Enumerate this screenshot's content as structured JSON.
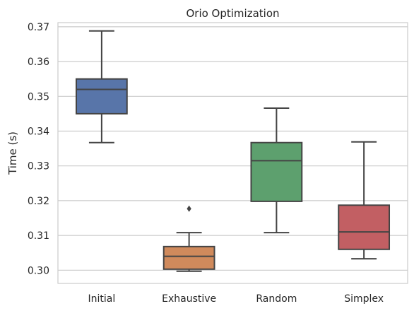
{
  "chart_data": {
    "type": "box",
    "title": "Orio Optimization",
    "xlabel": "",
    "ylabel": "Time (s)",
    "ylim": [
      0.2962,
      0.3712
    ],
    "yticks": [
      "0.30",
      "0.31",
      "0.32",
      "0.33",
      "0.34",
      "0.35",
      "0.36",
      "0.37"
    ],
    "grid": "horizontal",
    "categories": [
      "Initial",
      "Exhaustive",
      "Random",
      "Simplex"
    ],
    "boxes": [
      {
        "name": "Initial",
        "color": "#5875a9",
        "whisker_low": 0.3367,
        "q1": 0.345,
        "median": 0.352,
        "q3": 0.355,
        "whisker_high": 0.3688,
        "outliers": []
      },
      {
        "name": "Exhaustive",
        "color": "#d08a5c",
        "whisker_low": 0.2997,
        "q1": 0.3003,
        "median": 0.304,
        "q3": 0.3068,
        "whisker_high": 0.3108,
        "outliers": [
          0.3177
        ]
      },
      {
        "name": "Random",
        "color": "#5da06e",
        "whisker_low": 0.3108,
        "q1": 0.3198,
        "median": 0.3315,
        "q3": 0.3367,
        "whisker_high": 0.3466,
        "outliers": []
      },
      {
        "name": "Simplex",
        "color": "#c25f63",
        "whisker_low": 0.3033,
        "q1": 0.306,
        "median": 0.311,
        "q3": 0.3187,
        "whisker_high": 0.3369,
        "outliers": []
      }
    ]
  }
}
